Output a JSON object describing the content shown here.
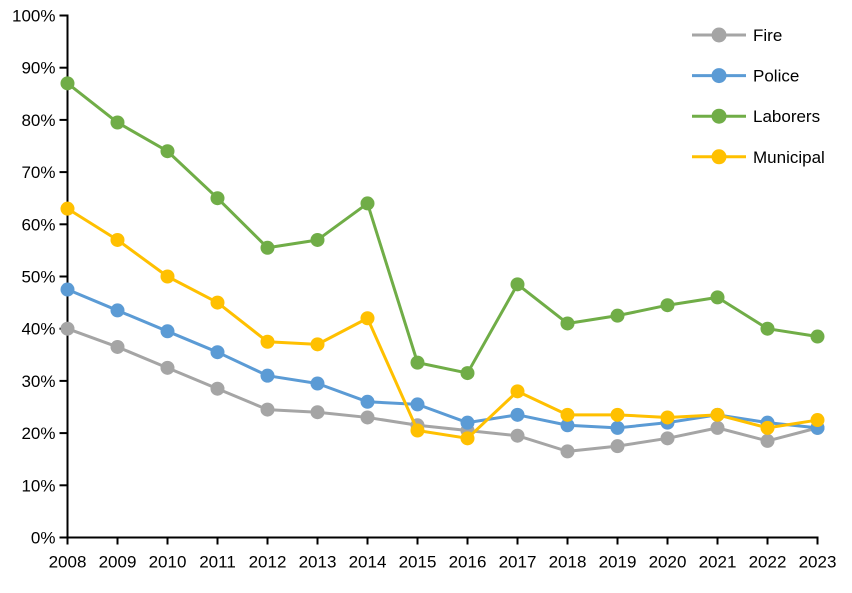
{
  "chart_data": {
    "type": "line",
    "title": "",
    "xlabel": "",
    "ylabel": "",
    "x": [
      2008,
      2009,
      2010,
      2011,
      2012,
      2013,
      2014,
      2015,
      2016,
      2017,
      2018,
      2019,
      2020,
      2021,
      2022,
      2023
    ],
    "x_tick_labels": [
      "2008",
      "2009",
      "2010",
      "2011",
      "2012",
      "2013",
      "2014",
      "2015",
      "2016",
      "2017",
      "2018",
      "2019",
      "2020",
      "2021",
      "2022",
      "2023"
    ],
    "y_tick_labels": [
      "0%",
      "10%",
      "20%",
      "30%",
      "40%",
      "50%",
      "60%",
      "70%",
      "80%",
      "90%",
      "100%"
    ],
    "ylim": [
      0,
      100
    ],
    "ytick_step": 10,
    "grid": false,
    "legend_position": "top-right",
    "axis_color": "#000000",
    "background_color": "#ffffff",
    "series": [
      {
        "name": "Fire",
        "color": "#A5A5A5",
        "values": [
          40,
          36.5,
          32.5,
          28.5,
          24.5,
          24,
          23,
          21.5,
          20.5,
          19.5,
          16.5,
          17.5,
          19,
          21,
          18.5,
          21
        ]
      },
      {
        "name": "Police",
        "color": "#5B9BD5",
        "values": [
          47.5,
          43.5,
          39.5,
          35.5,
          31,
          29.5,
          26,
          25.5,
          22,
          23.5,
          21.5,
          21,
          22,
          23.5,
          22,
          21
        ]
      },
      {
        "name": "Laborers",
        "color": "#70AD47",
        "values": [
          87,
          79.5,
          74,
          65,
          55.5,
          57,
          64,
          33.5,
          31.5,
          48.5,
          41,
          42.5,
          44.5,
          46,
          40,
          38.5
        ]
      },
      {
        "name": "Municipal",
        "color": "#FFC000",
        "values": [
          63,
          57,
          50,
          45,
          37.5,
          37,
          42,
          20.5,
          19,
          28,
          23.5,
          23.5,
          23,
          23.5,
          21,
          22.5
        ]
      }
    ]
  }
}
